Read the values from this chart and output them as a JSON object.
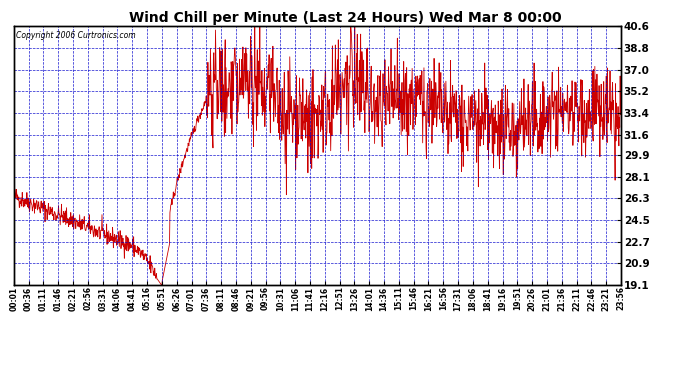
{
  "title": "Wind Chill per Minute (Last 24 Hours) Wed Mar 8 00:00",
  "copyright": "Copyright 2006 Curtronics.com",
  "ylabel_right_ticks": [
    40.6,
    38.8,
    37.0,
    35.2,
    33.4,
    31.6,
    29.9,
    28.1,
    26.3,
    24.5,
    22.7,
    20.9,
    19.1
  ],
  "ymin": 19.1,
  "ymax": 40.6,
  "bg_color": "#ffffff",
  "plot_bg_color": "#ffffff",
  "line_color": "#cc0000",
  "grid_color": "#0000cc",
  "title_color": "#000000",
  "border_color": "#000000",
  "x_tick_labels": [
    "00:01",
    "00:36",
    "01:11",
    "01:46",
    "02:21",
    "02:56",
    "03:31",
    "04:06",
    "04:41",
    "05:16",
    "05:51",
    "06:26",
    "07:01",
    "07:36",
    "08:11",
    "08:46",
    "09:21",
    "09:56",
    "10:31",
    "11:06",
    "11:41",
    "12:16",
    "12:51",
    "13:26",
    "14:01",
    "14:36",
    "15:11",
    "15:46",
    "16:21",
    "16:56",
    "17:31",
    "18:06",
    "18:41",
    "19:16",
    "19:51",
    "20:26",
    "21:01",
    "21:36",
    "22:11",
    "22:46",
    "23:21",
    "23:56"
  ],
  "num_points": 1440,
  "seed": 42
}
